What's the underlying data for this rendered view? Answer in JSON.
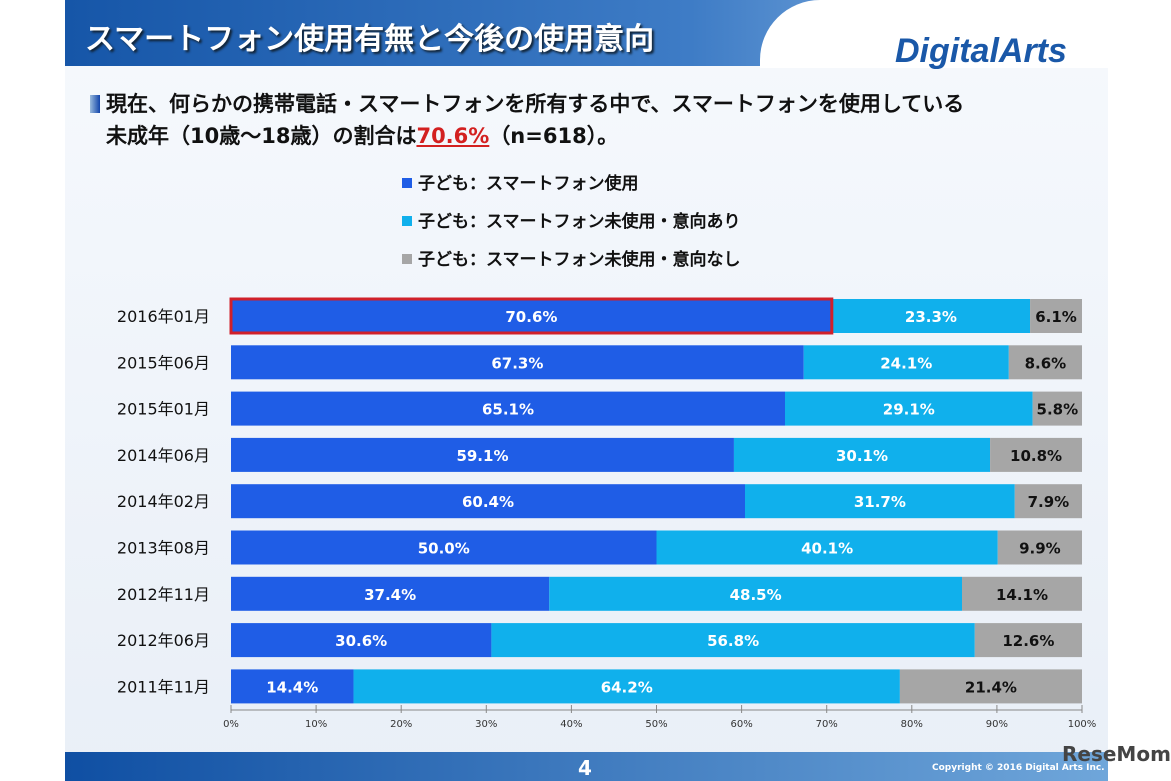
{
  "header": {
    "title": "スマートフォン使用有無と今後の使用意向",
    "logo": "DigitalArts"
  },
  "summary": {
    "line1": "現在、何らかの携帯電話・スマートフォンを所有する中で、スマートフォンを使用している",
    "line2_pre": "未成年（10歳～18歳）の割合は",
    "highlight": "70.6%",
    "line2_post": "（n=618）。"
  },
  "footer": {
    "page": "4",
    "copyright": "Copyright © 2016 Digital Arts Inc.",
    "watermark": "ReseMom"
  },
  "colors": {
    "use": "#1f5de6",
    "intend": "#10b0ec",
    "no_intend": "#a6a6a6",
    "highlight_border": "#d0202a"
  },
  "chart_data": {
    "type": "bar",
    "orientation": "horizontal",
    "stacked": true,
    "categories": [
      "2016年01月",
      "2015年06月",
      "2015年01月",
      "2014年06月",
      "2014年02月",
      "2013年08月",
      "2012年11月",
      "2012年06月",
      "2011年11月"
    ],
    "series": [
      {
        "name": "子ども：スマートフォン使用",
        "values": [
          70.6,
          67.3,
          65.1,
          59.1,
          60.4,
          50.0,
          37.4,
          30.6,
          14.4
        ]
      },
      {
        "name": "子ども：スマートフォン未使用・意向あり",
        "values": [
          23.3,
          24.1,
          29.1,
          30.1,
          31.7,
          40.1,
          48.5,
          56.8,
          64.2
        ]
      },
      {
        "name": "子ども：スマートフォン未使用・意向なし",
        "values": [
          6.1,
          8.6,
          5.8,
          10.8,
          7.9,
          9.9,
          14.1,
          12.6,
          21.4
        ]
      }
    ],
    "xlim": [
      0,
      100
    ],
    "xticks": [
      "0%",
      "10%",
      "20%",
      "30%",
      "40%",
      "50%",
      "60%",
      "70%",
      "80%",
      "90%",
      "100%"
    ],
    "legend_placement": "top",
    "grid": false,
    "highlighted_category": "2016年01月"
  }
}
